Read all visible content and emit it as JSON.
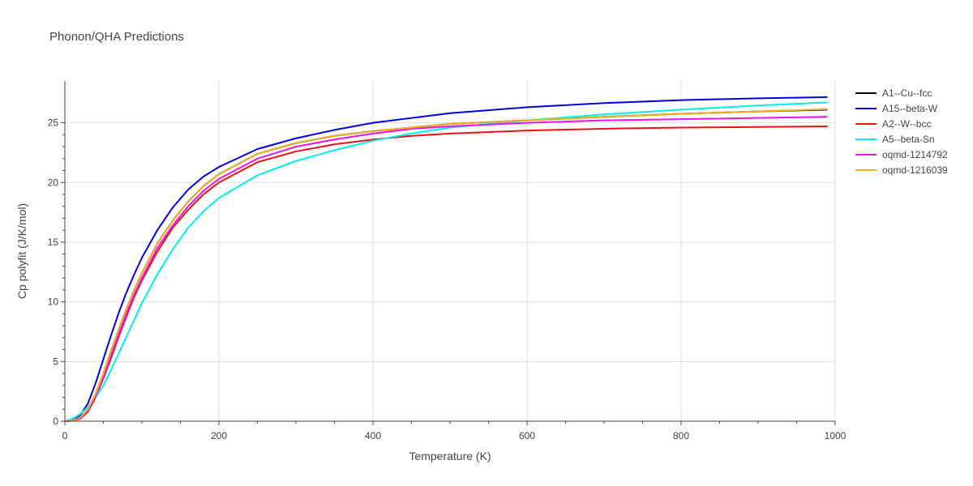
{
  "chart_data": {
    "type": "line",
    "title": "Phonon/QHA Predictions",
    "xlabel": "Temperature (K)",
    "ylabel": "Cp polyfit (J/K/mol)",
    "xlim": [
      0,
      1000
    ],
    "ylim": [
      0,
      28.5
    ],
    "xticks": [
      0,
      200,
      400,
      600,
      800,
      1000
    ],
    "xtick_labels": [
      "0",
      "200",
      "400",
      "600",
      "800",
      "1000"
    ],
    "yticks": [
      0,
      5,
      10,
      15,
      20,
      25
    ],
    "ytick_labels": [
      "0",
      "5",
      "10",
      "15",
      "20",
      "25"
    ],
    "grid": true,
    "legend_position": "right",
    "x": [
      0,
      10,
      20,
      30,
      40,
      50,
      60,
      70,
      80,
      90,
      100,
      120,
      140,
      160,
      180,
      200,
      250,
      300,
      350,
      400,
      450,
      500,
      600,
      700,
      800,
      900,
      990
    ],
    "series": [
      {
        "name": "A1--Cu--fcc",
        "color": "#000000",
        "values": [
          0,
          0.05,
          0.3,
          1.0,
          2.3,
          4.0,
          5.9,
          7.7,
          9.4,
          11.0,
          12.4,
          14.9,
          16.8,
          18.4,
          19.7,
          20.7,
          22.4,
          23.3,
          23.9,
          24.3,
          24.6,
          24.9,
          25.2,
          25.5,
          25.75,
          25.95,
          26.1
        ]
      },
      {
        "name": "A15--beta-W",
        "color": "#0000dd",
        "values": [
          0,
          0.1,
          0.5,
          1.5,
          3.2,
          5.2,
          7.2,
          9.1,
          10.8,
          12.3,
          13.7,
          16.0,
          17.9,
          19.4,
          20.5,
          21.3,
          22.8,
          23.7,
          24.4,
          25.0,
          25.4,
          25.8,
          26.3,
          26.65,
          26.9,
          27.05,
          27.15
        ]
      },
      {
        "name": "A2--W--bcc",
        "color": "#ee1111",
        "values": [
          0,
          0.04,
          0.2,
          0.8,
          2.0,
          3.6,
          5.3,
          7.1,
          8.8,
          10.4,
          11.8,
          14.2,
          16.2,
          17.7,
          19.0,
          20.0,
          21.7,
          22.6,
          23.2,
          23.6,
          23.9,
          24.1,
          24.35,
          24.5,
          24.6,
          24.65,
          24.7
        ]
      },
      {
        "name": "A5--beta-Sn",
        "color": "#00eeee",
        "values": [
          0,
          0.2,
          0.6,
          1.2,
          2.0,
          3.0,
          4.3,
          5.7,
          7.1,
          8.5,
          9.9,
          12.3,
          14.4,
          16.2,
          17.6,
          18.7,
          20.6,
          21.8,
          22.7,
          23.5,
          24.1,
          24.6,
          25.2,
          25.7,
          26.1,
          26.45,
          26.7
        ]
      },
      {
        "name": "oqmd-1214792",
        "color": "#ee11ee",
        "values": [
          0,
          0.04,
          0.25,
          0.9,
          2.1,
          3.7,
          5.5,
          7.3,
          9.0,
          10.6,
          12.0,
          14.5,
          16.4,
          18.0,
          19.3,
          20.3,
          22.0,
          23.0,
          23.6,
          24.1,
          24.5,
          24.7,
          25.0,
          25.2,
          25.3,
          25.4,
          25.5
        ]
      },
      {
        "name": "oqmd-1216039",
        "color": "#f0b020",
        "values": [
          0,
          0.05,
          0.3,
          1.0,
          2.3,
          4.0,
          5.9,
          7.7,
          9.4,
          11.0,
          12.4,
          14.9,
          16.8,
          18.4,
          19.7,
          20.7,
          22.4,
          23.3,
          23.9,
          24.3,
          24.6,
          24.9,
          25.2,
          25.5,
          25.75,
          25.95,
          26.15
        ]
      }
    ]
  }
}
